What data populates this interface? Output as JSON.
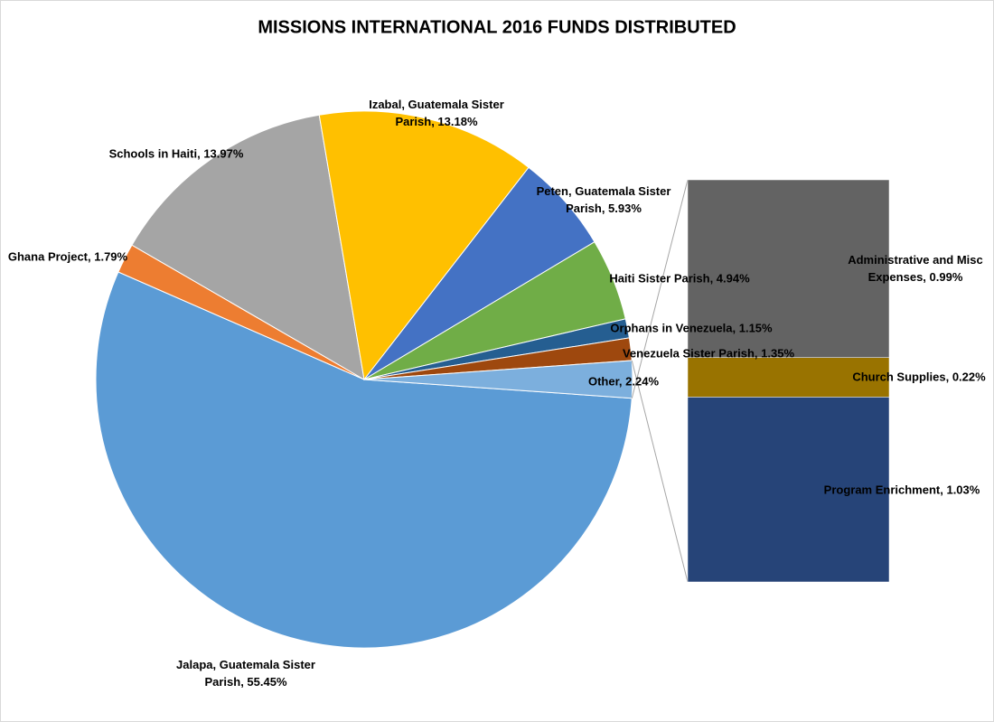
{
  "chart_data": {
    "type": "pie-of-bar",
    "title": "MISSIONS INTERNATIONAL 2016 FUNDS DISTRIBUTED",
    "pie": {
      "values": [
        55.45,
        1.79,
        13.97,
        13.18,
        5.93,
        4.94,
        1.15,
        1.35,
        2.24
      ],
      "value_labels": [
        "Jalapa, Guatemala Sister Parish, 55.45%",
        "Ghana Project, 1.79%",
        "Schools in Haiti, 13.97%",
        "Izabal, Guatemala Sister Parish, 13.18%",
        "Peten, Guatemala Sister Parish, 5.93%",
        "Haiti Sister Parish, 4.94%",
        "Orphans in Venezuela, 1.15%",
        "Venezuela Sister Parish, 1.35%",
        "Other, 2.24%"
      ],
      "colors": [
        "#5b9bd5",
        "#ed7d31",
        "#a5a5a5",
        "#ffc000",
        "#4472c4",
        "#70ad47",
        "#255e91",
        "#9e480e",
        "#7cafdd"
      ]
    },
    "bar": {
      "values": [
        1.03,
        0.22,
        0.99
      ],
      "value_labels": [
        "Program Enrichment, 1.03%",
        "Church Supplies, 0.22%",
        "Administrative and Misc Expenses, 0.99%"
      ],
      "colors": [
        "#264478",
        "#997300",
        "#636363"
      ]
    }
  }
}
